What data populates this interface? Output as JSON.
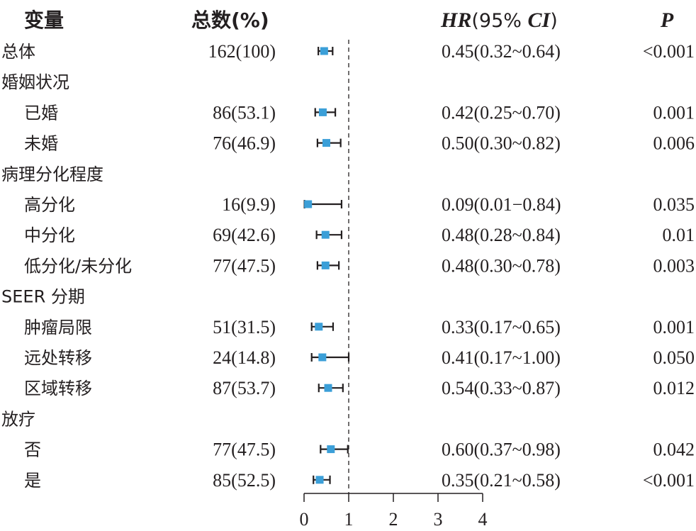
{
  "chart_data": {
    "type": "forest",
    "headers": {
      "variable": "变量",
      "total": "总数(%)",
      "hr_it": "HR",
      "hr_open": "(95% ",
      "ci_it": "CI",
      "hr_close": ")",
      "p": "P"
    },
    "rows": [
      {
        "label": "总体",
        "indent": 0,
        "n": "162(100)",
        "hr_text": "0.45(0.32~0.64)",
        "p": "<0.001",
        "hr": 0.45,
        "lo": 0.32,
        "hi": 0.64
      },
      {
        "label": "婚姻状况",
        "indent": 0
      },
      {
        "label": "已婚",
        "indent": 1,
        "n": "86(53.1)",
        "hr_text": "0.42(0.25~0.70)",
        "p": "0.001",
        "hr": 0.42,
        "lo": 0.25,
        "hi": 0.7
      },
      {
        "label": "未婚",
        "indent": 1,
        "n": "76(46.9)",
        "hr_text": "0.50(0.30~0.82)",
        "p": "0.006",
        "hr": 0.5,
        "lo": 0.3,
        "hi": 0.82
      },
      {
        "label": "病理分化程度",
        "indent": 0
      },
      {
        "label": "高分化",
        "indent": 1,
        "n": "16(9.9)",
        "hr_text": "0.09(0.01−0.84)",
        "p": "0.035",
        "hr": 0.09,
        "lo": 0.01,
        "hi": 0.84
      },
      {
        "label": "中分化",
        "indent": 1,
        "n": "69(42.6)",
        "hr_text": "0.48(0.28~0.84)",
        "p": "0.01",
        "hr": 0.48,
        "lo": 0.28,
        "hi": 0.84
      },
      {
        "label": "低分化/未分化",
        "indent": 1,
        "n": "77(47.5)",
        "hr_text": "0.48(0.30~0.78)",
        "p": "0.003",
        "hr": 0.48,
        "lo": 0.3,
        "hi": 0.78
      },
      {
        "label": "SEER 分期",
        "indent": 0
      },
      {
        "label": "肿瘤局限",
        "indent": 1,
        "n": "51(31.5)",
        "hr_text": "0.33(0.17~0.65)",
        "p": "0.001",
        "hr": 0.33,
        "lo": 0.17,
        "hi": 0.65
      },
      {
        "label": "远处转移",
        "indent": 1,
        "n": "24(14.8)",
        "hr_text": "0.41(0.17~1.00)",
        "p": "0.050",
        "hr": 0.41,
        "lo": 0.17,
        "hi": 1.0
      },
      {
        "label": "区域转移",
        "indent": 1,
        "n": "87(53.7)",
        "hr_text": "0.54(0.33~0.87)",
        "p": "0.012",
        "hr": 0.54,
        "lo": 0.33,
        "hi": 0.87
      },
      {
        "label": "放疗",
        "indent": 0
      },
      {
        "label": "否",
        "indent": 1,
        "n": "77(47.5)",
        "hr_text": "0.60(0.37~0.98)",
        "p": "0.042",
        "hr": 0.6,
        "lo": 0.37,
        "hi": 0.98
      },
      {
        "label": "是",
        "indent": 1,
        "n": "85(52.5)",
        "hr_text": "0.35(0.21~0.58)",
        "p": "<0.001",
        "hr": 0.35,
        "lo": 0.21,
        "hi": 0.58
      }
    ],
    "x_ticks": [
      0,
      1,
      2,
      3,
      4
    ],
    "xlim": [
      0,
      4
    ],
    "reference_line": 1,
    "marker_color": "#3b9fd8",
    "line_color": "#231f20"
  }
}
